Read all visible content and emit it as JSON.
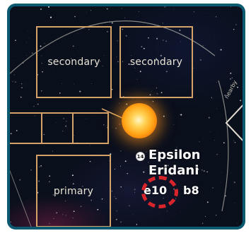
{
  "board": {
    "slots": {
      "secondary_1": "secondary",
      "secondary_2": "secondary",
      "primary": "primary"
    },
    "system": {
      "badge": "14",
      "name_line1": "Epsilon",
      "name_line2": "Eridani",
      "coord_a": "e10",
      "coord_b": "b8"
    },
    "nearby_label": "nearby"
  },
  "colors": {
    "frame": "#0c5a72",
    "slot_border": "#d4a36a",
    "space": "#0a0f1c",
    "highlight": "#d8252c"
  }
}
